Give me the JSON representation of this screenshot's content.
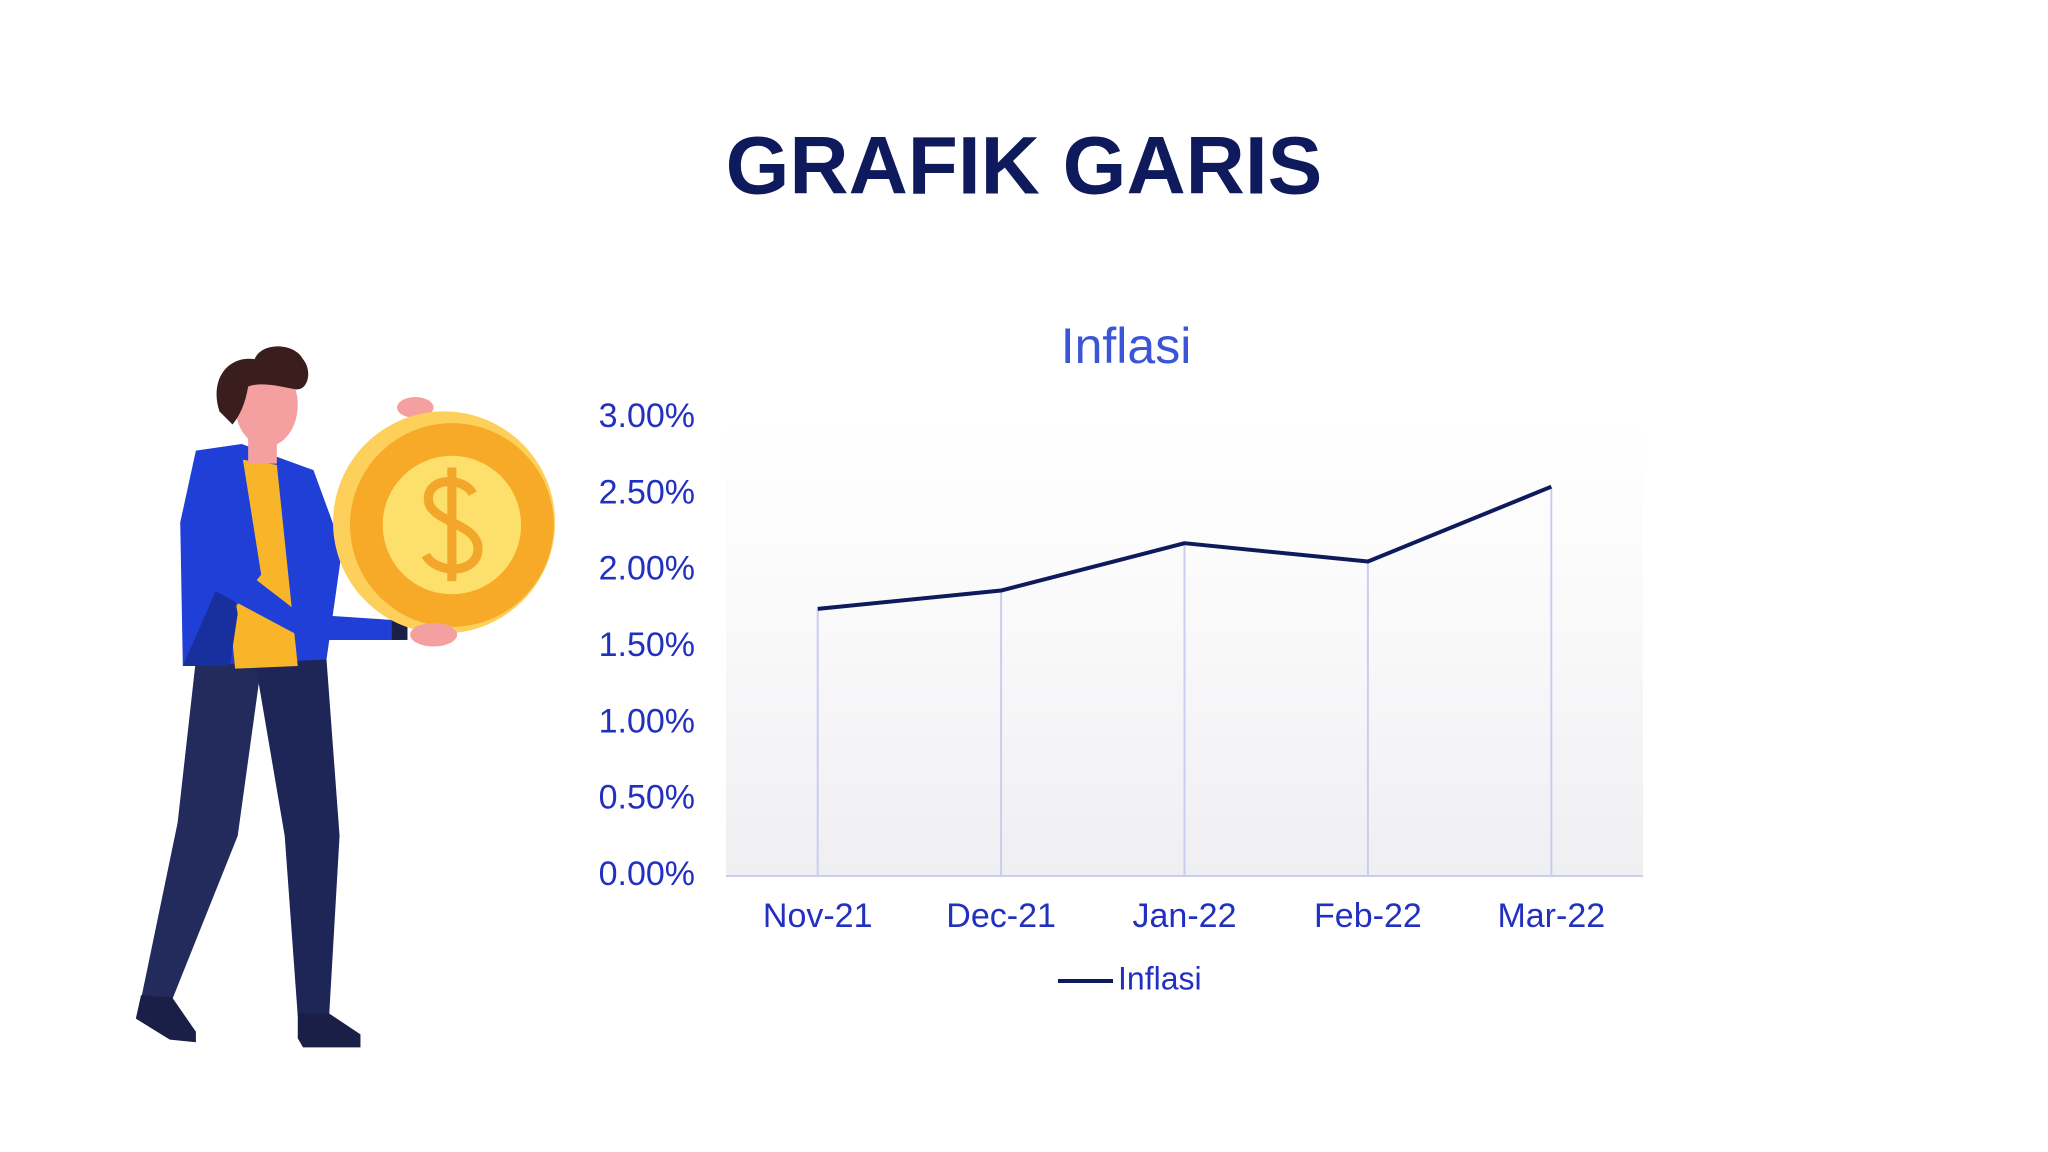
{
  "header": {
    "title": "GRAFIK GARIS"
  },
  "chart_data": {
    "type": "line",
    "title": "Inflasi",
    "categories": [
      "Nov-21",
      "Dec-21",
      "Jan-22",
      "Feb-22",
      "Mar-22"
    ],
    "series": [
      {
        "name": "Inflasi",
        "color": "#0f1a5c",
        "values": [
          1.75,
          1.87,
          2.18,
          2.06,
          2.55
        ]
      }
    ],
    "ylim": [
      0,
      3
    ],
    "yticks": [
      {
        "value": 0,
        "label": "0.00%"
      },
      {
        "value": 0.5,
        "label": "0.50%"
      },
      {
        "value": 1,
        "label": "1.00%"
      },
      {
        "value": 1.5,
        "label": "1.50%"
      },
      {
        "value": 2,
        "label": "2.00%"
      },
      {
        "value": 2.5,
        "label": "2.50%"
      },
      {
        "value": 3,
        "label": "3.00%"
      }
    ],
    "drop_lines": true,
    "legend": "bottom"
  }
}
